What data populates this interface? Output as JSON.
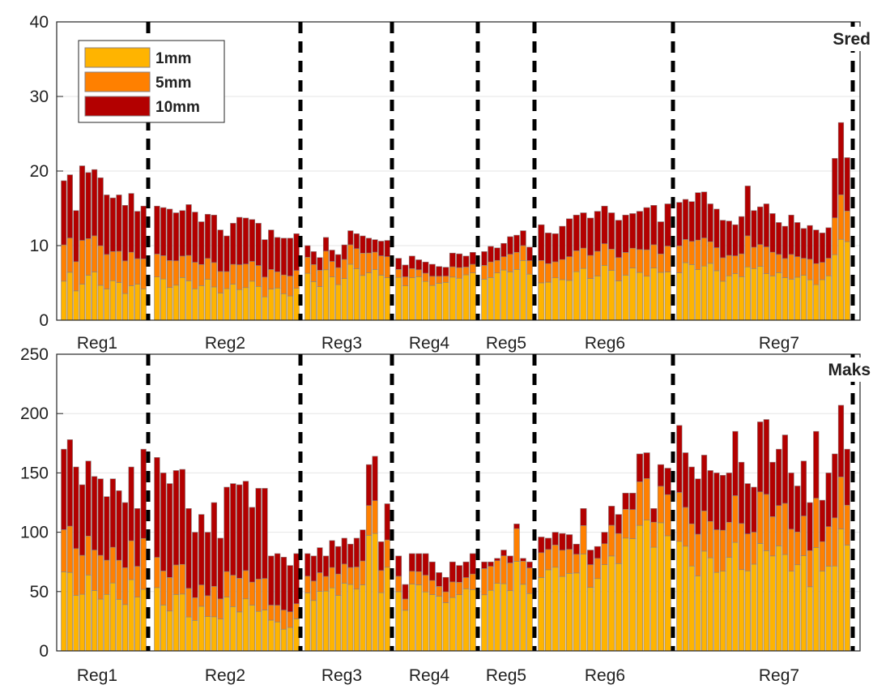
{
  "chart_data": [
    {
      "type": "bar",
      "stacked": true,
      "panel_label": "Sred",
      "ylim": [
        0,
        40
      ],
      "yticks": [
        0,
        10,
        20,
        30,
        40
      ],
      "grid": "horizontal",
      "legend": {
        "placement": "top-left",
        "entries": [
          "1mm",
          "5mm",
          "10mm"
        ]
      },
      "series_colors": [
        "#ffb400",
        "#ff8000",
        "#b30000"
      ],
      "regions": [
        {
          "label": "Reg1",
          "totals": [
            18.7,
            19.5,
            14.7,
            20.7,
            19.8,
            20.2,
            19.1,
            16.8,
            16.4,
            16.8,
            15.4,
            17.0,
            14.6,
            15.3
          ]
        },
        {
          "label": "Reg2",
          "totals": [
            15.3,
            15.1,
            14.9,
            14.4,
            14.7,
            15.5,
            14.5,
            13.2,
            14.2,
            14.1,
            12.1,
            11.3,
            13.0,
            13.8,
            13.7,
            13.5,
            13.0,
            10.8,
            12.1,
            11.1,
            11.0,
            11.0,
            11.6
          ]
        },
        {
          "label": "Reg3",
          "totals": [
            10.0,
            9.2,
            8.4,
            11.1,
            9.4,
            8.8,
            10.1,
            12.0,
            11.6,
            11.3,
            11.0,
            10.8,
            10.6,
            10.7
          ]
        },
        {
          "label": "Reg4",
          "totals": [
            8.3,
            7.4,
            8.6,
            8.1,
            7.8,
            7.5,
            7.2,
            7.1,
            9.0,
            8.9,
            8.6,
            9.1
          ]
        },
        {
          "label": "Reg5",
          "totals": [
            9.2,
            9.9,
            9.7,
            10.3,
            11.2,
            11.4,
            12.0,
            9.8
          ]
        },
        {
          "label": "Reg6",
          "totals": [
            12.8,
            11.7,
            11.6,
            12.6,
            13.6,
            14.1,
            14.4,
            13.7,
            14.6,
            15.3,
            14.4,
            13.4,
            14.1,
            14.3,
            14.6,
            15.1,
            15.4,
            13.2,
            15.6
          ]
        },
        {
          "label": "Reg7",
          "totals": [
            15.8,
            16.2,
            15.9,
            17.1,
            17.2,
            15.6,
            14.9,
            13.4,
            13.3,
            12.8,
            13.9,
            18.0,
            14.7,
            15.2,
            15.6,
            14.3,
            13.1,
            12.6,
            14.1,
            13.1,
            12.3,
            12.7,
            12.1,
            11.7,
            12.4,
            21.7,
            26.5,
            21.8
          ]
        }
      ]
    },
    {
      "type": "bar",
      "stacked": true,
      "panel_label": "Maks",
      "ylim": [
        0,
        250
      ],
      "yticks": [
        0,
        50,
        100,
        150,
        200,
        250
      ],
      "grid": "horizontal",
      "series_colors": [
        "#ffb400",
        "#ff8000",
        "#b30000"
      ],
      "regions": [
        {
          "label": "Reg1",
          "totals": [
            170,
            178,
            155,
            140,
            160,
            147,
            145,
            130,
            145,
            135,
            125,
            155,
            120,
            170
          ]
        },
        {
          "label": "Reg2",
          "totals": [
            163,
            150,
            141,
            152,
            153,
            120,
            100,
            115,
            100,
            125,
            95,
            138,
            141,
            140,
            143,
            121,
            137,
            137,
            80,
            82,
            79,
            72,
            82
          ]
        },
        {
          "label": "Reg3",
          "totals": [
            82,
            80,
            87,
            80,
            93,
            88,
            95,
            90,
            95,
            102,
            157,
            164,
            92,
            124
          ]
        },
        {
          "label": "Reg4",
          "totals": [
            80,
            56,
            82,
            82,
            82,
            75,
            66,
            62,
            75,
            72,
            75,
            82
          ]
        },
        {
          "label": "Reg5",
          "totals": [
            75,
            75,
            78,
            85,
            80,
            107,
            78,
            75
          ]
        },
        {
          "label": "Reg6",
          "totals": [
            96,
            95,
            100,
            99,
            98,
            90,
            120,
            85,
            88,
            100,
            122,
            115,
            133,
            133,
            166,
            167,
            120,
            157,
            154
          ]
        },
        {
          "label": "Reg7",
          "totals": [
            190,
            167,
            155,
            145,
            165,
            152,
            150,
            148,
            150,
            185,
            159,
            141,
            138,
            193,
            195,
            159,
            170,
            182,
            150,
            139,
            160,
            125,
            185,
            127,
            150,
            166,
            207,
            170
          ]
        }
      ]
    }
  ]
}
